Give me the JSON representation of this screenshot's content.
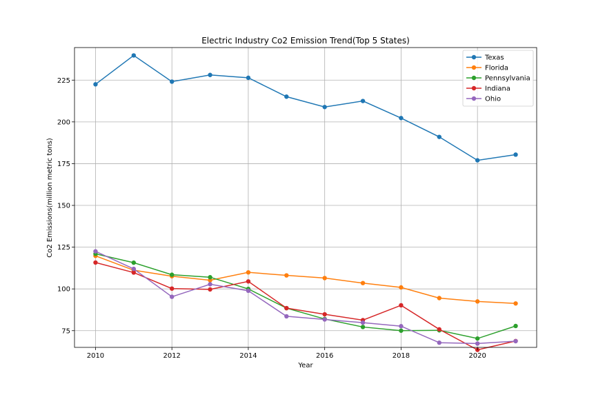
{
  "chart_data": {
    "type": "line",
    "title": "Electric Industry Co2 Emission Trend(Top 5 States)",
    "xlabel": "Year",
    "ylabel": "Co2 Emissions(million metric tons)",
    "x": [
      2010,
      2011,
      2012,
      2013,
      2014,
      2015,
      2016,
      2017,
      2018,
      2019,
      2020,
      2021
    ],
    "xlim": [
      2009.45,
      2021.55
    ],
    "ylim": [
      65,
      244.5
    ],
    "xticks": [
      2010,
      2012,
      2014,
      2016,
      2018,
      2020
    ],
    "yticks": [
      75,
      100,
      125,
      150,
      175,
      200,
      225
    ],
    "grid": true,
    "legend_position": "upper-right",
    "series": [
      {
        "name": "Texas",
        "color": "#1f77b4",
        "values": [
          222.5,
          239.8,
          224.1,
          228.1,
          226.4,
          215.1,
          208.9,
          212.5,
          202.3,
          191.0,
          177.0,
          180.4
        ]
      },
      {
        "name": "Florida",
        "color": "#ff7f0e",
        "values": [
          119.8,
          111.2,
          107.6,
          105.2,
          109.9,
          108.1,
          106.5,
          103.5,
          100.9,
          94.5,
          92.5,
          91.3
        ]
      },
      {
        "name": "Pennsylvania",
        "color": "#2ca02c",
        "values": [
          121.0,
          115.7,
          108.5,
          107.0,
          100.0,
          88.5,
          82.0,
          77.2,
          75.0,
          75.2,
          70.3,
          77.8
        ]
      },
      {
        "name": "Indiana",
        "color": "#d62728",
        "values": [
          115.8,
          109.8,
          100.2,
          99.7,
          104.5,
          88.5,
          84.8,
          81.3,
          90.2,
          75.8,
          63.5,
          68.8
        ]
      },
      {
        "name": "Ohio",
        "color": "#9467bd",
        "values": [
          122.5,
          112.0,
          95.3,
          102.8,
          98.9,
          83.6,
          81.7,
          79.8,
          77.7,
          67.8,
          67.3,
          68.7
        ]
      }
    ]
  }
}
